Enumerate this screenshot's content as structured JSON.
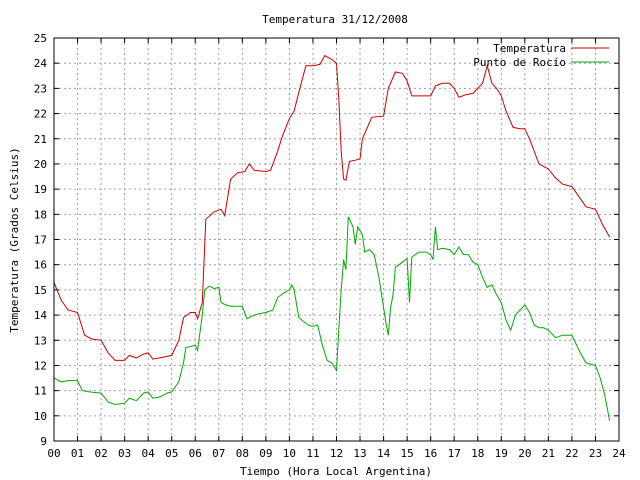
{
  "chart_data": {
    "type": "line",
    "title": "Temperatura 31/12/2008",
    "xlabel": "Tiempo (Hora Local Argentina)",
    "ylabel": "Temperatura (Grados Celsius)",
    "xlim": [
      0,
      24
    ],
    "ylim": [
      9,
      25
    ],
    "grid": true,
    "legend_position": "top-right",
    "x_ticks": [
      "00",
      "01",
      "02",
      "03",
      "04",
      "05",
      "06",
      "07",
      "08",
      "09",
      "10",
      "11",
      "12",
      "13",
      "14",
      "15",
      "16",
      "17",
      "18",
      "19",
      "20",
      "21",
      "22",
      "23",
      "24"
    ],
    "y_ticks": [
      9,
      10,
      11,
      12,
      13,
      14,
      15,
      16,
      17,
      18,
      19,
      20,
      21,
      22,
      23,
      24,
      25
    ],
    "series": [
      {
        "name": "Temperatura",
        "color": "#cc0000",
        "points": [
          [
            0.0,
            15.3
          ],
          [
            0.3,
            14.6
          ],
          [
            0.6,
            14.2
          ],
          [
            1.0,
            14.1
          ],
          [
            1.3,
            13.2
          ],
          [
            1.6,
            13.05
          ],
          [
            2.0,
            13.0
          ],
          [
            2.3,
            12.5
          ],
          [
            2.6,
            12.2
          ],
          [
            3.0,
            12.2
          ],
          [
            3.2,
            12.4
          ],
          [
            3.5,
            12.3
          ],
          [
            3.8,
            12.45
          ],
          [
            4.0,
            12.5
          ],
          [
            4.2,
            12.25
          ],
          [
            4.5,
            12.3
          ],
          [
            5.0,
            12.4
          ],
          [
            5.3,
            13.0
          ],
          [
            5.5,
            13.9
          ],
          [
            5.8,
            14.1
          ],
          [
            6.0,
            14.1
          ],
          [
            6.1,
            13.85
          ],
          [
            6.3,
            14.5
          ],
          [
            6.45,
            17.8
          ],
          [
            6.8,
            18.1
          ],
          [
            7.1,
            18.2
          ],
          [
            7.25,
            17.95
          ],
          [
            7.5,
            19.4
          ],
          [
            7.8,
            19.65
          ],
          [
            8.1,
            19.7
          ],
          [
            8.3,
            20.0
          ],
          [
            8.5,
            19.75
          ],
          [
            9.0,
            19.7
          ],
          [
            9.2,
            19.75
          ],
          [
            9.5,
            20.5
          ],
          [
            9.7,
            21.1
          ],
          [
            10.0,
            21.8
          ],
          [
            10.2,
            22.1
          ],
          [
            10.5,
            23.2
          ],
          [
            10.7,
            23.9
          ],
          [
            11.0,
            23.9
          ],
          [
            11.3,
            23.95
          ],
          [
            11.5,
            24.3
          ],
          [
            11.8,
            24.15
          ],
          [
            12.0,
            24.0
          ],
          [
            12.1,
            22.5
          ],
          [
            12.2,
            20.5
          ],
          [
            12.3,
            19.4
          ],
          [
            12.4,
            19.35
          ],
          [
            12.55,
            20.1
          ],
          [
            12.8,
            20.15
          ],
          [
            13.0,
            20.2
          ],
          [
            13.1,
            21.0
          ],
          [
            13.5,
            21.85
          ],
          [
            14.0,
            21.9
          ],
          [
            14.2,
            23.0
          ],
          [
            14.5,
            23.65
          ],
          [
            14.8,
            23.6
          ],
          [
            15.0,
            23.3
          ],
          [
            15.2,
            22.7
          ],
          [
            15.5,
            22.7
          ],
          [
            15.8,
            22.7
          ],
          [
            16.0,
            22.7
          ],
          [
            16.2,
            23.1
          ],
          [
            16.5,
            23.2
          ],
          [
            16.8,
            23.2
          ],
          [
            17.0,
            23.0
          ],
          [
            17.2,
            22.65
          ],
          [
            17.5,
            22.75
          ],
          [
            17.8,
            22.8
          ],
          [
            18.0,
            23.0
          ],
          [
            18.2,
            23.2
          ],
          [
            18.4,
            23.9
          ],
          [
            18.6,
            23.2
          ],
          [
            18.8,
            23.0
          ],
          [
            19.0,
            22.7
          ],
          [
            19.2,
            22.1
          ],
          [
            19.5,
            21.45
          ],
          [
            19.8,
            21.4
          ],
          [
            20.0,
            21.4
          ],
          [
            20.2,
            21.0
          ],
          [
            20.6,
            20.0
          ],
          [
            21.0,
            19.8
          ],
          [
            21.3,
            19.45
          ],
          [
            21.6,
            19.2
          ],
          [
            22.0,
            19.1
          ],
          [
            22.3,
            18.7
          ],
          [
            22.6,
            18.3
          ],
          [
            23.0,
            18.2
          ],
          [
            23.3,
            17.6
          ],
          [
            23.6,
            17.1
          ]
        ]
      },
      {
        "name": "Punto de Rocío",
        "color": "#00aa00",
        "points": [
          [
            0.0,
            11.5
          ],
          [
            0.3,
            11.35
          ],
          [
            0.6,
            11.4
          ],
          [
            1.0,
            11.4
          ],
          [
            1.2,
            11.0
          ],
          [
            1.5,
            10.95
          ],
          [
            2.0,
            10.9
          ],
          [
            2.3,
            10.55
          ],
          [
            2.6,
            10.45
          ],
          [
            3.0,
            10.5
          ],
          [
            3.2,
            10.7
          ],
          [
            3.5,
            10.6
          ],
          [
            3.8,
            10.9
          ],
          [
            4.0,
            10.95
          ],
          [
            4.2,
            10.7
          ],
          [
            4.5,
            10.75
          ],
          [
            4.8,
            10.9
          ],
          [
            5.0,
            10.95
          ],
          [
            5.3,
            11.35
          ],
          [
            5.5,
            12.1
          ],
          [
            5.6,
            12.7
          ],
          [
            5.8,
            12.75
          ],
          [
            6.0,
            12.8
          ],
          [
            6.1,
            12.6
          ],
          [
            6.3,
            14.0
          ],
          [
            6.4,
            15.0
          ],
          [
            6.6,
            15.15
          ],
          [
            6.8,
            15.05
          ],
          [
            7.0,
            15.1
          ],
          [
            7.1,
            14.5
          ],
          [
            7.3,
            14.4
          ],
          [
            7.5,
            14.35
          ],
          [
            7.8,
            14.35
          ],
          [
            8.0,
            14.35
          ],
          [
            8.2,
            13.85
          ],
          [
            8.5,
            14.0
          ],
          [
            8.7,
            14.05
          ],
          [
            9.0,
            14.1
          ],
          [
            9.3,
            14.2
          ],
          [
            9.5,
            14.7
          ],
          [
            9.8,
            14.9
          ],
          [
            10.0,
            15.0
          ],
          [
            10.1,
            15.2
          ],
          [
            10.2,
            15.0
          ],
          [
            10.4,
            13.9
          ],
          [
            10.6,
            13.75
          ],
          [
            10.8,
            13.6
          ],
          [
            11.0,
            13.55
          ],
          [
            11.2,
            13.6
          ],
          [
            11.4,
            12.8
          ],
          [
            11.6,
            12.2
          ],
          [
            11.8,
            12.1
          ],
          [
            12.0,
            11.8
          ],
          [
            12.1,
            13.5
          ],
          [
            12.2,
            15.0
          ],
          [
            12.3,
            16.2
          ],
          [
            12.4,
            15.8
          ],
          [
            12.5,
            17.9
          ],
          [
            12.7,
            17.5
          ],
          [
            12.8,
            16.8
          ],
          [
            12.9,
            17.5
          ],
          [
            13.1,
            17.2
          ],
          [
            13.2,
            16.5
          ],
          [
            13.4,
            16.6
          ],
          [
            13.6,
            16.4
          ],
          [
            13.8,
            15.5
          ],
          [
            14.0,
            14.3
          ],
          [
            14.1,
            13.7
          ],
          [
            14.2,
            13.2
          ],
          [
            14.3,
            14.3
          ],
          [
            14.4,
            14.8
          ],
          [
            14.5,
            15.9
          ],
          [
            14.8,
            16.1
          ],
          [
            15.0,
            16.25
          ],
          [
            15.1,
            14.5
          ],
          [
            15.2,
            16.3
          ],
          [
            15.5,
            16.5
          ],
          [
            15.8,
            16.5
          ],
          [
            16.0,
            16.4
          ],
          [
            16.1,
            16.2
          ],
          [
            16.2,
            17.5
          ],
          [
            16.3,
            16.6
          ],
          [
            16.5,
            16.65
          ],
          [
            16.8,
            16.6
          ],
          [
            17.0,
            16.4
          ],
          [
            17.2,
            16.7
          ],
          [
            17.4,
            16.4
          ],
          [
            17.6,
            16.4
          ],
          [
            17.8,
            16.1
          ],
          [
            18.0,
            16.0
          ],
          [
            18.2,
            15.5
          ],
          [
            18.4,
            15.1
          ],
          [
            18.6,
            15.2
          ],
          [
            18.8,
            14.8
          ],
          [
            19.0,
            14.5
          ],
          [
            19.2,
            13.8
          ],
          [
            19.4,
            13.4
          ],
          [
            19.6,
            14.0
          ],
          [
            19.8,
            14.2
          ],
          [
            20.0,
            14.4
          ],
          [
            20.2,
            14.1
          ],
          [
            20.4,
            13.6
          ],
          [
            20.6,
            13.5
          ],
          [
            20.8,
            13.5
          ],
          [
            21.0,
            13.4
          ],
          [
            21.3,
            13.1
          ],
          [
            21.6,
            13.2
          ],
          [
            22.0,
            13.2
          ],
          [
            22.3,
            12.6
          ],
          [
            22.6,
            12.1
          ],
          [
            23.0,
            12.0
          ],
          [
            23.2,
            11.5
          ],
          [
            23.4,
            10.8
          ],
          [
            23.6,
            9.8
          ]
        ]
      }
    ]
  }
}
